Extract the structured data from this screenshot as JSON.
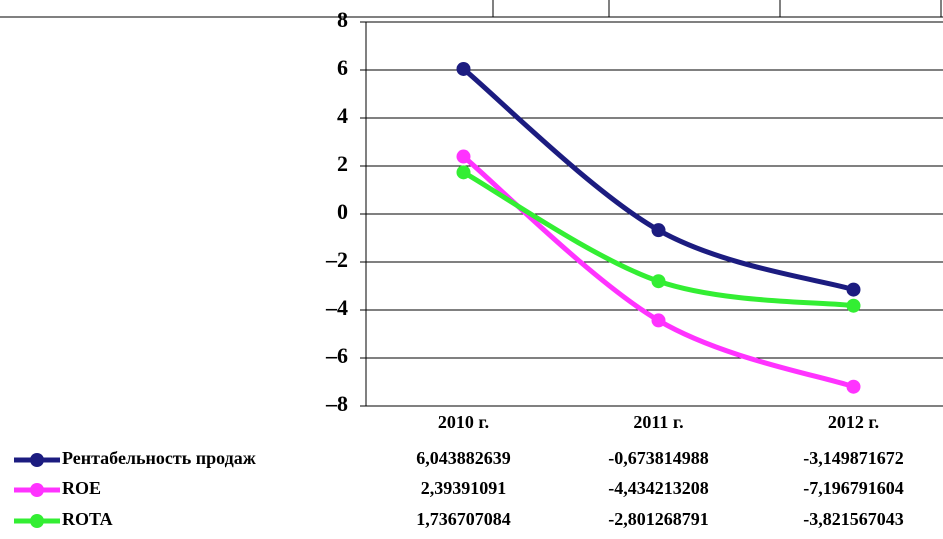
{
  "chart_data": {
    "type": "line",
    "categories": [
      "2010 г.",
      "2011 г.",
      "2012 г."
    ],
    "series": [
      {
        "name": "Рентабельность продаж",
        "color": "#1c1c80",
        "values": [
          6.043882639,
          -0.673814988,
          -3.149871672
        ],
        "value_labels": [
          "6,043882639",
          "-0,673814988",
          "-3,149871672"
        ]
      },
      {
        "name": "ROE",
        "color": "#ff33ff",
        "values": [
          2.39391091,
          -4.434213208,
          -7.196791604
        ],
        "value_labels": [
          "2,39391091",
          "-4,434213208",
          "-7,196791604"
        ]
      },
      {
        "name": "ROTA",
        "color": "#33ee33",
        "values": [
          1.736707084,
          -2.801268791,
          -3.821567043
        ],
        "value_labels": [
          "1,736707084",
          "-2,801268791",
          "-3,821567043"
        ]
      }
    ],
    "ylim": [
      -8,
      8
    ],
    "yticks": [
      {
        "value": -8,
        "label": "–8"
      },
      {
        "value": -6,
        "label": "–6"
      },
      {
        "value": -4,
        "label": "–4"
      },
      {
        "value": -2,
        "label": "–2"
      },
      0,
      2,
      4,
      6,
      8
    ],
    "grid": true
  }
}
